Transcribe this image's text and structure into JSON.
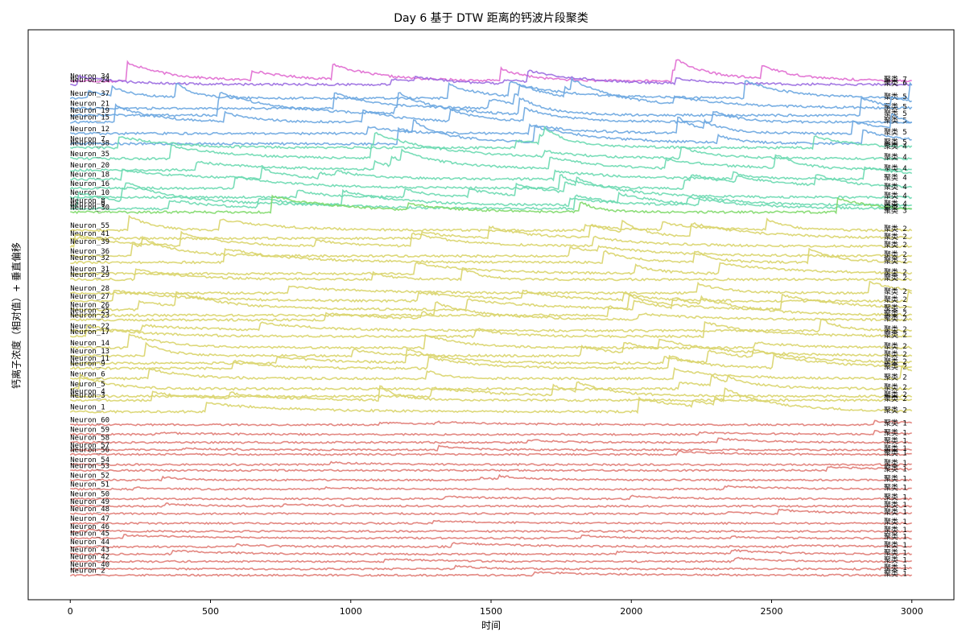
{
  "chart_data": {
    "type": "line",
    "title": "Day 6 基于 DTW 距离的钙波片段聚类",
    "xlabel": "时间",
    "ylabel": "钙离子浓度（相对值）+ 垂直偏移",
    "xlim": [
      -150,
      3150
    ],
    "xticks": [
      0,
      500,
      1000,
      1500,
      2000,
      2500,
      3000
    ],
    "ylim": [
      0,
      1
    ],
    "grid": false,
    "cluster_label_prefix": "聚类",
    "cluster_colors": {
      "1": "#e07b74",
      "2": "#d9d46a",
      "3": "#7fd96a",
      "4": "#6ad9b0",
      "5": "#6aa6e0",
      "6": "#9a6ae0",
      "7": "#e06ad0"
    },
    "series": [
      {
        "name": "Neuron_34",
        "cluster": 7,
        "baseline": 0.91
      },
      {
        "name": "Neuron_24",
        "cluster": 6,
        "baseline": 0.904
      },
      {
        "name": "Neuron_37",
        "cluster": 5,
        "baseline": 0.88
      },
      {
        "name": "Neuron_21",
        "cluster": 5,
        "baseline": 0.862
      },
      {
        "name": "Neuron_19",
        "cluster": 5,
        "baseline": 0.85
      },
      {
        "name": "Neuron_15",
        "cluster": 5,
        "baseline": 0.838
      },
      {
        "name": "Neuron_12",
        "cluster": 5,
        "baseline": 0.818
      },
      {
        "name": "Neuron_7",
        "cluster": 5,
        "baseline": 0.8
      },
      {
        "name": "Neuron_38",
        "cluster": 4,
        "baseline": 0.793
      },
      {
        "name": "Neuron_35",
        "cluster": 4,
        "baseline": 0.774
      },
      {
        "name": "Neuron_20",
        "cluster": 4,
        "baseline": 0.754
      },
      {
        "name": "Neuron_18",
        "cluster": 4,
        "baseline": 0.738
      },
      {
        "name": "Neuron_16",
        "cluster": 4,
        "baseline": 0.722
      },
      {
        "name": "Neuron_10",
        "cluster": 4,
        "baseline": 0.706
      },
      {
        "name": "Neuron_8",
        "cluster": 4,
        "baseline": 0.692
      },
      {
        "name": "Neuron_9",
        "cluster": 4,
        "baseline": 0.686
      },
      {
        "name": "Neuron_30",
        "cluster": 3,
        "baseline": 0.68
      },
      {
        "name": "Neuron_55",
        "cluster": 2,
        "baseline": 0.648
      },
      {
        "name": "Neuron_41",
        "cluster": 2,
        "baseline": 0.634
      },
      {
        "name": "Neuron_39",
        "cluster": 2,
        "baseline": 0.62
      },
      {
        "name": "Neuron_36",
        "cluster": 2,
        "baseline": 0.603
      },
      {
        "name": "Neuron_32",
        "cluster": 2,
        "baseline": 0.592
      },
      {
        "name": "Neuron_31",
        "cluster": 2,
        "baseline": 0.572
      },
      {
        "name": "Neuron_29",
        "cluster": 2,
        "baseline": 0.562
      },
      {
        "name": "Neuron_28",
        "cluster": 2,
        "baseline": 0.538
      },
      {
        "name": "Neuron_27",
        "cluster": 2,
        "baseline": 0.524
      },
      {
        "name": "Neuron_26",
        "cluster": 2,
        "baseline": 0.509
      },
      {
        "name": "Neuron_25",
        "cluster": 2,
        "baseline": 0.499
      },
      {
        "name": "Neuron_23",
        "cluster": 2,
        "baseline": 0.491
      },
      {
        "name": "Neuron_22",
        "cluster": 2,
        "baseline": 0.472
      },
      {
        "name": "Neuron_17",
        "cluster": 2,
        "baseline": 0.462
      },
      {
        "name": "Neuron_14",
        "cluster": 2,
        "baseline": 0.442
      },
      {
        "name": "Neuron_13",
        "cluster": 2,
        "baseline": 0.428
      },
      {
        "name": "Neuron_11",
        "cluster": 2,
        "baseline": 0.415
      },
      {
        "name": "Neuron_9",
        "cluster": 2,
        "baseline": 0.406
      },
      {
        "name": "Neuron_6",
        "cluster": 2,
        "baseline": 0.388
      },
      {
        "name": "Neuron_5",
        "cluster": 2,
        "baseline": 0.37
      },
      {
        "name": "Neuron_4",
        "cluster": 2,
        "baseline": 0.357
      },
      {
        "name": "Neuron_3",
        "cluster": 2,
        "baseline": 0.35
      },
      {
        "name": "Neuron_1",
        "cluster": 2,
        "baseline": 0.33
      },
      {
        "name": "Neuron_60",
        "cluster": 1,
        "baseline": 0.307
      },
      {
        "name": "Neuron_59",
        "cluster": 1,
        "baseline": 0.29
      },
      {
        "name": "Neuron_58",
        "cluster": 1,
        "baseline": 0.276
      },
      {
        "name": "Neuron_57",
        "cluster": 1,
        "baseline": 0.263
      },
      {
        "name": "Neuron_56",
        "cluster": 1,
        "baseline": 0.255
      },
      {
        "name": "Neuron_54",
        "cluster": 1,
        "baseline": 0.237
      },
      {
        "name": "Neuron_53",
        "cluster": 1,
        "baseline": 0.227
      },
      {
        "name": "Neuron_52",
        "cluster": 1,
        "baseline": 0.21
      },
      {
        "name": "Neuron_51",
        "cluster": 1,
        "baseline": 0.194
      },
      {
        "name": "Neuron_50",
        "cluster": 1,
        "baseline": 0.177
      },
      {
        "name": "Neuron_49",
        "cluster": 1,
        "baseline": 0.164
      },
      {
        "name": "Neuron_48",
        "cluster": 1,
        "baseline": 0.151
      },
      {
        "name": "Neuron_47",
        "cluster": 1,
        "baseline": 0.134
      },
      {
        "name": "Neuron_46",
        "cluster": 1,
        "baseline": 0.12
      },
      {
        "name": "Neuron_45",
        "cluster": 1,
        "baseline": 0.108
      },
      {
        "name": "Neuron_44",
        "cluster": 1,
        "baseline": 0.093
      },
      {
        "name": "Neuron_43",
        "cluster": 1,
        "baseline": 0.08
      },
      {
        "name": "Neuron_42",
        "cluster": 1,
        "baseline": 0.067
      },
      {
        "name": "Neuron_40",
        "cluster": 1,
        "baseline": 0.054
      },
      {
        "name": "Neuron_2",
        "cluster": 1,
        "baseline": 0.043
      }
    ]
  }
}
